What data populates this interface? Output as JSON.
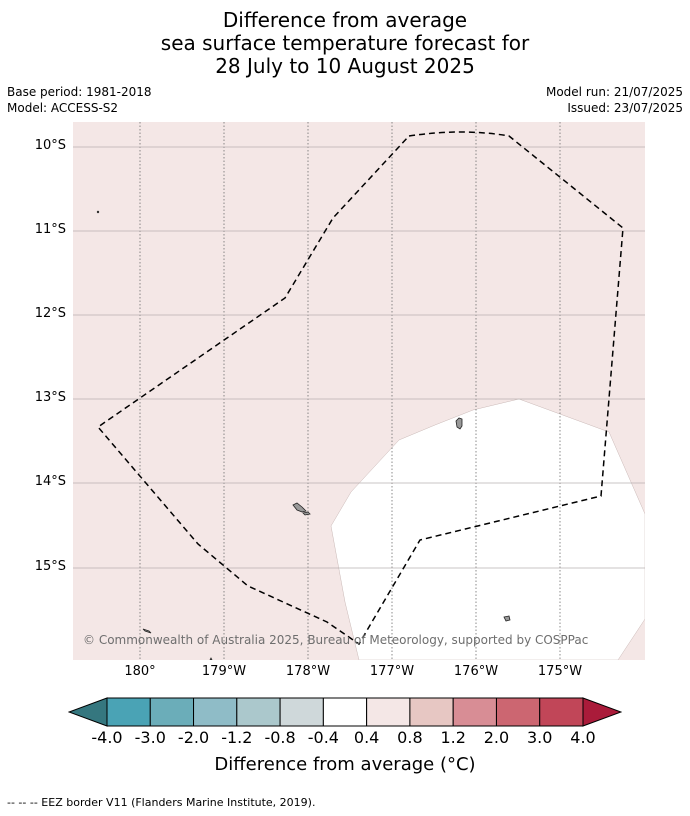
{
  "title": {
    "line1": "Difference from average",
    "line2": "sea surface temperature forecast for",
    "line3": "28 July to 10 August 2025"
  },
  "meta": {
    "base_period": "Base period: 1981-2018",
    "model": "Model: ACCESS-S2",
    "model_run": "Model run: 21/07/2025",
    "issued": "Issued: 23/07/2025"
  },
  "map": {
    "lat_labels": [
      "10°S",
      "11°S",
      "12°S",
      "13°S",
      "14°S",
      "15°S"
    ],
    "lon_labels": [
      "180°",
      "179°W",
      "178°W",
      "177°W",
      "176°W",
      "175°W"
    ],
    "copyright": "© Commonwealth of Australia 2025, Bureau of Meteorology, supported by COSPPac",
    "colors": {
      "background_anomaly": "#f4e7e6",
      "neutral": "#ffffff",
      "land": "#999999",
      "gridline": "#b9b0b0"
    }
  },
  "colorbar": {
    "ticks": [
      "-4.0",
      "-3.0",
      "-2.0",
      "-1.2",
      "-0.8",
      "-0.4",
      "0.4",
      "0.8",
      "1.2",
      "2.0",
      "3.0",
      "4.0"
    ],
    "colors": [
      "#35777f",
      "#4aa3b5",
      "#6badb9",
      "#8fbcc7",
      "#abc8cc",
      "#cfd8da",
      "#ffffff",
      "#f4e7e6",
      "#e7c7c3",
      "#d88d95",
      "#cc6671",
      "#c14658",
      "#aa1b3a"
    ],
    "title": "Difference from average (°C)"
  },
  "footer": "--  --  -- EEZ border V11 (Flanders Marine Institute, 2019)."
}
